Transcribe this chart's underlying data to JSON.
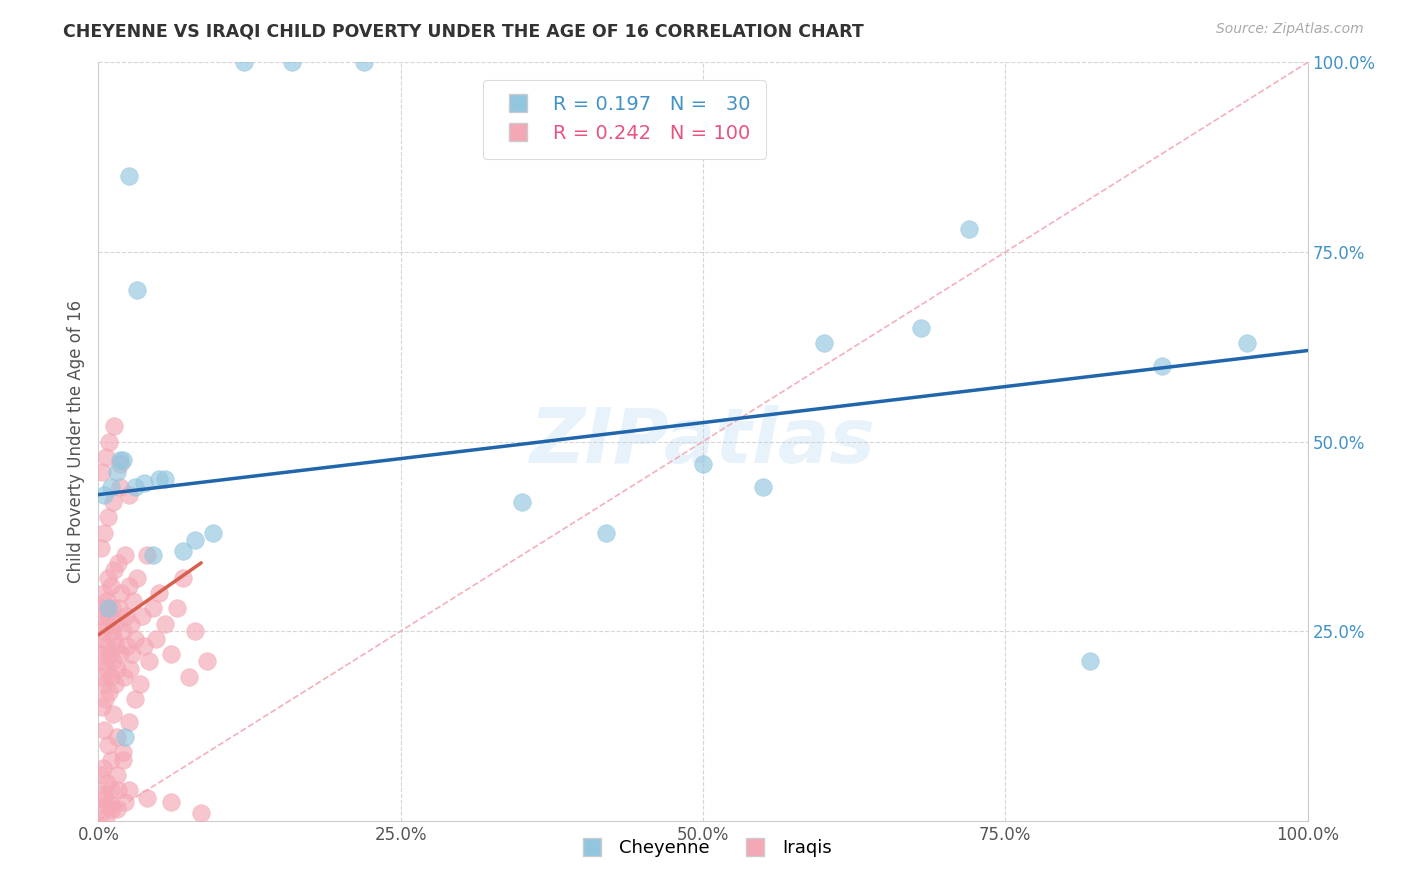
{
  "title": "CHEYENNE VS IRAQI CHILD POVERTY UNDER THE AGE OF 16 CORRELATION CHART",
  "source": "Source: ZipAtlas.com",
  "ylabel": "Child Poverty Under the Age of 16",
  "xlim": [
    0,
    100
  ],
  "ylim": [
    0,
    100
  ],
  "xtick_labels": [
    "0.0%",
    "25.0%",
    "50.0%",
    "75.0%",
    "100.0%"
  ],
  "xtick_vals": [
    0,
    25,
    50,
    75,
    100
  ],
  "ytick_labels": [
    "25.0%",
    "50.0%",
    "75.0%",
    "100.0%"
  ],
  "ytick_vals": [
    25,
    50,
    75,
    100
  ],
  "cheyenne_color": "#92c5de",
  "iraqi_color": "#f4a7b4",
  "trend_blue": "#2166ac",
  "trend_pink": "#d6604d",
  "cheyenne_R": 0.197,
  "cheyenne_N": 30,
  "iraqi_R": 0.242,
  "iraqi_N": 100,
  "watermark": "ZIPatlas",
  "cheyenne_x": [
    2.5,
    3.2,
    5.0,
    0.5,
    1.0,
    1.5,
    2.0,
    3.8,
    4.5,
    7.0,
    9.5,
    12.0,
    16.0,
    22.0,
    35.0,
    42.0,
    50.0,
    55.0,
    60.0,
    68.0,
    72.0,
    82.0,
    88.0,
    95.0,
    1.8,
    3.0,
    5.5,
    8.0,
    0.8,
    2.2
  ],
  "cheyenne_y": [
    85.0,
    70.0,
    45.0,
    43.0,
    44.0,
    46.0,
    47.5,
    44.5,
    35.0,
    35.5,
    38.0,
    100.0,
    100.0,
    100.0,
    42.0,
    38.0,
    47.0,
    44.0,
    63.0,
    65.0,
    78.0,
    21.0,
    60.0,
    63.0,
    47.5,
    44.0,
    45.0,
    37.0,
    28.0,
    11.0
  ],
  "iraqi_x": [
    0.1,
    0.15,
    0.2,
    0.25,
    0.3,
    0.35,
    0.4,
    0.45,
    0.5,
    0.55,
    0.6,
    0.65,
    0.7,
    0.75,
    0.8,
    0.85,
    0.9,
    0.95,
    1.0,
    1.05,
    1.1,
    1.15,
    1.2,
    1.25,
    1.3,
    1.35,
    1.4,
    1.45,
    1.5,
    1.6,
    1.7,
    1.8,
    1.9,
    2.0,
    2.1,
    2.2,
    2.3,
    2.4,
    2.5,
    2.6,
    2.7,
    2.8,
    2.9,
    3.0,
    3.2,
    3.4,
    3.6,
    3.8,
    4.0,
    4.2,
    4.5,
    4.8,
    5.0,
    5.5,
    6.0,
    6.5,
    7.0,
    7.5,
    8.0,
    9.0,
    0.3,
    0.5,
    0.8,
    1.0,
    1.2,
    1.5,
    2.0,
    2.5,
    3.0,
    0.2,
    0.4,
    0.7,
    1.0,
    1.5,
    2.0,
    0.2,
    0.5,
    0.8,
    1.2,
    1.8,
    0.3,
    0.6,
    0.9,
    1.3,
    1.8,
    2.5,
    0.4,
    0.7,
    1.1,
    1.6,
    2.2,
    0.2,
    0.4,
    0.6,
    1.0,
    1.5,
    2.5,
    4.0,
    6.0,
    8.5
  ],
  "iraqi_y": [
    27.0,
    24.0,
    22.0,
    19.0,
    28.0,
    25.0,
    21.0,
    18.0,
    30.0,
    16.0,
    26.0,
    23.0,
    20.0,
    29.0,
    32.0,
    17.0,
    27.0,
    22.0,
    31.0,
    19.0,
    25.0,
    28.0,
    21.0,
    24.0,
    33.0,
    18.0,
    26.0,
    23.0,
    20.0,
    34.0,
    28.0,
    22.0,
    30.0,
    25.0,
    19.0,
    35.0,
    27.0,
    23.0,
    31.0,
    20.0,
    26.0,
    22.0,
    29.0,
    24.0,
    32.0,
    18.0,
    27.0,
    23.0,
    35.0,
    21.0,
    28.0,
    24.0,
    30.0,
    26.0,
    22.0,
    28.0,
    32.0,
    19.0,
    25.0,
    21.0,
    15.0,
    12.0,
    10.0,
    8.0,
    14.0,
    11.0,
    9.0,
    13.0,
    16.0,
    6.0,
    7.0,
    5.0,
    4.0,
    6.0,
    8.0,
    36.0,
    38.0,
    40.0,
    42.0,
    44.0,
    46.0,
    48.0,
    50.0,
    52.0,
    47.0,
    43.0,
    3.0,
    2.0,
    1.5,
    4.0,
    2.5,
    1.0,
    3.5,
    0.5,
    2.0,
    1.5,
    4.0,
    3.0,
    2.5,
    1.0
  ]
}
